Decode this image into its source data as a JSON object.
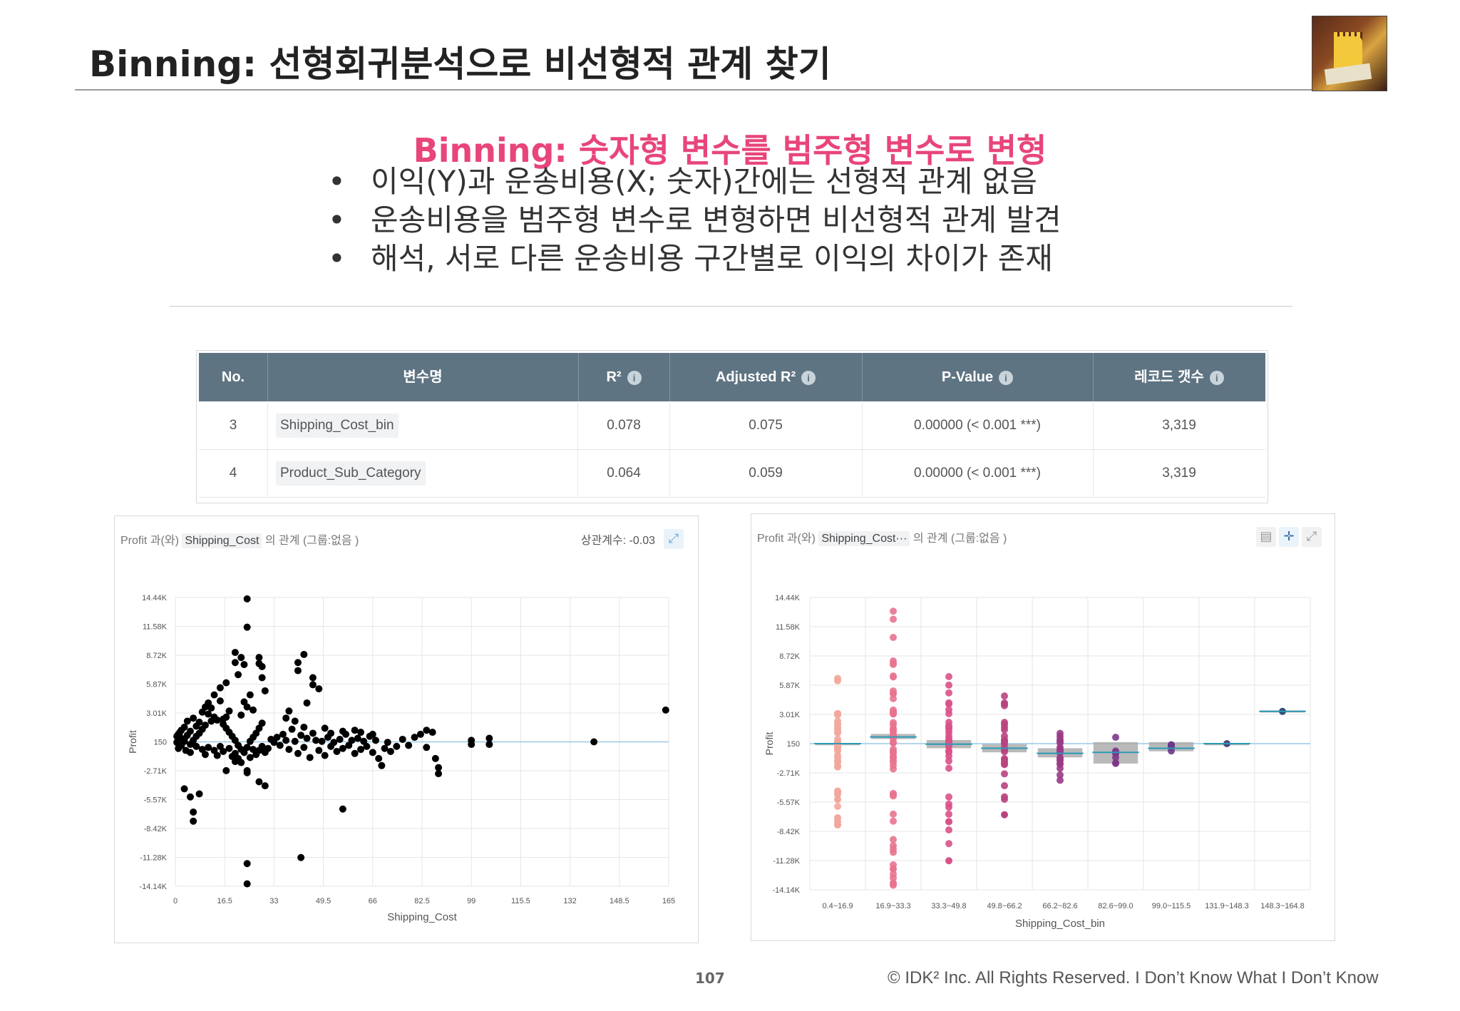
{
  "slide": {
    "title": "Binning: 선형회귀분석으로 비선형적 관계 찾기",
    "subtitle": "Binning: 숫자형 변수를 범주형 변수로 변형",
    "bullets": [
      "이익(Y)과 운송비용(X; 숫자)간에는 선형적 관계 없음",
      "운송비용을 범주형 변수로 변형하면 비선형적 관계 발견",
      "해석, 서로 다른 운송비용 구간별로 이익의 차이가 존재"
    ],
    "page_number": "107",
    "copyright": "© IDK² Inc. All Rights Reserved.  I Don’t Know What I Don’t Know"
  },
  "logo": {
    "icon": "cartoon-reading-logo"
  },
  "table": {
    "headers": [
      "No.",
      "변수명",
      "R²",
      "Adjusted R²",
      "P-Value",
      "레코드 갯수"
    ],
    "info_icon": "i",
    "rows": [
      {
        "no": "3",
        "name": "Shipping_Cost_bin",
        "r2": "0.078",
        "adj_r2": "0.075",
        "pvalue": "0.00000 (< 0.001 ***)",
        "count": "3,319"
      },
      {
        "no": "4",
        "name": "Product_Sub_Category",
        "r2": "0.064",
        "adj_r2": "0.059",
        "pvalue": "0.00000 (< 0.001 ***)",
        "count": "3,319"
      }
    ]
  },
  "left_panel": {
    "header_y": "Profit",
    "header_mid": "과(와)",
    "header_x": "Shipping_Cost",
    "header_tail": "의 관계 (그룹:없음 )",
    "correlation": "상관계수: -0.03",
    "icon": "expand-icon"
  },
  "right_panel": {
    "header_y": "Profit",
    "header_mid": "과(와)",
    "header_x": "Shipping_Cost···",
    "header_tail": "의 관계 (그룹:없음 )",
    "icons": [
      "table-icon",
      "crosshair-icon",
      "expand-icon"
    ]
  },
  "chart_data": [
    {
      "type": "scatter",
      "title": "",
      "xlabel": "Shipping_Cost",
      "ylabel": "Profit",
      "x_ticks": [
        "0",
        "16.5",
        "33",
        "49.5",
        "66",
        "82.5",
        "99",
        "115.5",
        "132",
        "148.5",
        "165"
      ],
      "x_tick_values": [
        0,
        16.5,
        33,
        49.5,
        66,
        82.5,
        99,
        115.5,
        132,
        148.5,
        165
      ],
      "y_ticks": [
        "14.44K",
        "11.58K",
        "8.72K",
        "5.87K",
        "3.01K",
        "150",
        "-2.71K",
        "-5.57K",
        "-8.42K",
        "-11.28K",
        "-14.14K"
      ],
      "y_tick_values": [
        14440,
        11580,
        8720,
        5870,
        3010,
        150,
        -2710,
        -5570,
        -8420,
        -11280,
        -14140
      ],
      "xlim": [
        0,
        165
      ],
      "ylim": [
        -14140,
        14440
      ],
      "grid": true,
      "series": [
        {
          "points": [
            [
              24,
              14300
            ],
            [
              24,
              11500
            ],
            [
              20,
              9000
            ],
            [
              20,
              8000
            ],
            [
              22,
              8500
            ],
            [
              23,
              7800
            ],
            [
              21,
              6800
            ],
            [
              17,
              6000
            ],
            [
              15,
              5500
            ],
            [
              15,
              4200
            ],
            [
              13,
              4800
            ],
            [
              11,
              4000
            ],
            [
              10,
              3600
            ],
            [
              9,
              3100
            ],
            [
              6,
              2500
            ],
            [
              4,
              2200
            ],
            [
              3,
              1600
            ],
            [
              2,
              1300
            ],
            [
              1,
              900
            ],
            [
              2,
              500
            ],
            [
              3,
              200
            ],
            [
              5,
              -100
            ],
            [
              6,
              300
            ],
            [
              7,
              700
            ],
            [
              8,
              1000
            ],
            [
              9,
              1400
            ],
            [
              10,
              1800
            ],
            [
              12,
              2200
            ],
            [
              13,
              2600
            ],
            [
              14,
              2300
            ],
            [
              16,
              1900
            ],
            [
              17,
              1500
            ],
            [
              18,
              1100
            ],
            [
              19,
              700
            ],
            [
              20,
              300
            ],
            [
              21,
              -200
            ],
            [
              22,
              -600
            ],
            [
              23,
              -900
            ],
            [
              24,
              -400
            ],
            [
              25,
              200
            ],
            [
              26,
              600
            ],
            [
              27,
              1000
            ],
            [
              28,
              1500
            ],
            [
              29,
              2000
            ],
            [
              28,
              8500
            ],
            [
              28,
              7900
            ],
            [
              29,
              7600
            ],
            [
              29,
              6500
            ],
            [
              30,
              5200
            ],
            [
              25,
              4800
            ],
            [
              26,
              3300
            ],
            [
              24,
              3600
            ],
            [
              23,
              4100
            ],
            [
              22,
              2800
            ],
            [
              18,
              3200
            ],
            [
              17,
              2600
            ],
            [
              16,
              2400
            ],
            [
              12,
              3500
            ],
            [
              11,
              2900
            ],
            [
              8,
              2100
            ],
            [
              7,
              1700
            ],
            [
              5,
              1200
            ],
            [
              4,
              800
            ],
            [
              3,
              400
            ],
            [
              2,
              -200
            ],
            [
              1,
              -500
            ],
            [
              0.5,
              100
            ],
            [
              0.5,
              700
            ],
            [
              1.5,
              1100
            ],
            [
              3.5,
              -700
            ],
            [
              5,
              -900
            ],
            [
              7,
              -300
            ],
            [
              9,
              -600
            ],
            [
              10,
              -1100
            ],
            [
              11,
              -400
            ],
            [
              13,
              -700
            ],
            [
              14,
              -1200
            ],
            [
              15,
              -300
            ],
            [
              16,
              -800
            ],
            [
              18,
              -500
            ],
            [
              19,
              -1300
            ],
            [
              20,
              -1000
            ],
            [
              21,
              -1500
            ],
            [
              22,
              -1900
            ],
            [
              24,
              -2700
            ],
            [
              25,
              -1400
            ],
            [
              26,
              -600
            ],
            [
              27,
              -1100
            ],
            [
              28,
              -700
            ],
            [
              29,
              -300
            ],
            [
              30,
              -900
            ],
            [
              31,
              -500
            ],
            [
              32,
              400
            ],
            [
              33,
              100
            ],
            [
              34,
              600
            ],
            [
              35,
              -200
            ],
            [
              36,
              900
            ],
            [
              37,
              300
            ],
            [
              38,
              -600
            ],
            [
              39,
              1400
            ],
            [
              40,
              200
            ],
            [
              41,
              -1000
            ],
            [
              42,
              800
            ],
            [
              43,
              -400
            ],
            [
              44,
              500
            ],
            [
              45,
              -1400
            ],
            [
              46,
              1000
            ],
            [
              47,
              300
            ],
            [
              48,
              -700
            ],
            [
              49,
              200
            ],
            [
              50,
              -1200
            ],
            [
              51,
              600
            ],
            [
              52,
              -300
            ],
            [
              53,
              100
            ],
            [
              54,
              -800
            ],
            [
              55,
              400
            ],
            [
              56,
              -500
            ],
            [
              57,
              900
            ],
            [
              58,
              -200
            ],
            [
              59,
              300
            ],
            [
              60,
              -1000
            ],
            [
              61,
              500
            ],
            [
              62,
              -600
            ],
            [
              63,
              200
            ],
            [
              64,
              -300
            ],
            [
              65,
              700
            ],
            [
              66,
              -900
            ],
            [
              67,
              300
            ],
            [
              68,
              -1500
            ],
            [
              69,
              -2200
            ],
            [
              70,
              -500
            ],
            [
              71,
              100
            ],
            [
              72,
              -800
            ],
            [
              74,
              -300
            ],
            [
              76,
              400
            ],
            [
              78,
              -200
            ],
            [
              80,
              600
            ],
            [
              82,
              900
            ],
            [
              84,
              1300
            ],
            [
              86,
              1100
            ],
            [
              84,
              -400
            ],
            [
              87,
              -1500
            ],
            [
              88,
              -2400
            ],
            [
              88,
              -3000
            ],
            [
              99,
              300
            ],
            [
              99,
              -100
            ],
            [
              105,
              500
            ],
            [
              105,
              -100
            ],
            [
              140,
              150
            ],
            [
              164,
              3300
            ],
            [
              41,
              8000
            ],
            [
              41,
              7200
            ],
            [
              43,
              8800
            ],
            [
              46,
              6500
            ],
            [
              46,
              5800
            ],
            [
              48,
              5400
            ],
            [
              44,
              4000
            ],
            [
              38,
              3200
            ],
            [
              37,
              2500
            ],
            [
              40,
              2200
            ],
            [
              43,
              1600
            ],
            [
              50,
              1500
            ],
            [
              52,
              1000
            ],
            [
              56,
              1200
            ],
            [
              60,
              1300
            ],
            [
              62,
              1100
            ],
            [
              66,
              900
            ],
            [
              3,
              -4500
            ],
            [
              5,
              -5300
            ],
            [
              8,
              -5000
            ],
            [
              6,
              -6800
            ],
            [
              6,
              -7700
            ],
            [
              20,
              -1800
            ],
            [
              17,
              -2700
            ],
            [
              24,
              -2900
            ],
            [
              28,
              -3800
            ],
            [
              30,
              -4200
            ],
            [
              24,
              -11900
            ],
            [
              24,
              -13900
            ],
            [
              42,
              -11300
            ],
            [
              56,
              -6500
            ]
          ]
        }
      ]
    },
    {
      "type": "strip",
      "title": "",
      "xlabel": "Shipping_Cost_bin",
      "ylabel": "Profit",
      "categories": [
        "0.4~16.9",
        "16.9~33.3",
        "33.3~49.8",
        "49.8~66.2",
        "66.2~82.6",
        "82.6~99.0",
        "99.0~115.5",
        "131.9~148.3",
        "148.3~164.8"
      ],
      "y_ticks": [
        "14.44K",
        "11.58K",
        "8.72K",
        "5.87K",
        "3.01K",
        "150",
        "-2.71K",
        "-5.57K",
        "-8.42K",
        "-11.28K",
        "-14.14K"
      ],
      "y_tick_values": [
        14440,
        11580,
        8720,
        5870,
        3010,
        150,
        -2710,
        -5570,
        -8420,
        -11280,
        -14140
      ],
      "ylim": [
        -14140,
        14440
      ],
      "means": [
        150,
        800,
        100,
        -300,
        -800,
        -700,
        -300,
        150,
        3300
      ],
      "box": [
        [
          100,
          200
        ],
        [
          600,
          1100
        ],
        [
          -300,
          500
        ],
        [
          -700,
          100
        ],
        [
          -1200,
          -300
        ],
        [
          -1800,
          300
        ],
        [
          -600,
          300
        ],
        [
          100,
          200
        ],
        [
          3200,
          3400
        ]
      ],
      "colors": [
        "#f2a79c",
        "#e8738f",
        "#d9518a",
        "#b8447f",
        "#9a3a86",
        "#7d378a",
        "#6a3988",
        "#3a3a6a",
        "#1f3d6a"
      ],
      "ranges": [
        [
          -8000,
          7200
        ],
        [
          -14000,
          14400
        ],
        [
          -11300,
          8500
        ],
        [
          -6500,
          5200
        ],
        [
          -3600,
          1200
        ],
        [
          -3200,
          800
        ],
        [
          -600,
          600
        ],
        [
          100,
          200
        ],
        [
          3200,
          3400
        ]
      ],
      "point_counts": [
        40,
        60,
        45,
        30,
        18,
        8,
        5,
        1,
        1
      ],
      "outliers": [
        [
          0,
          -4800
        ],
        [
          0,
          -5300
        ],
        [
          0,
          -7100
        ],
        [
          0,
          -7800
        ],
        [
          1,
          -12100
        ],
        [
          1,
          -13500
        ],
        [
          2,
          -11300
        ],
        [
          3,
          -6800
        ]
      ]
    }
  ]
}
